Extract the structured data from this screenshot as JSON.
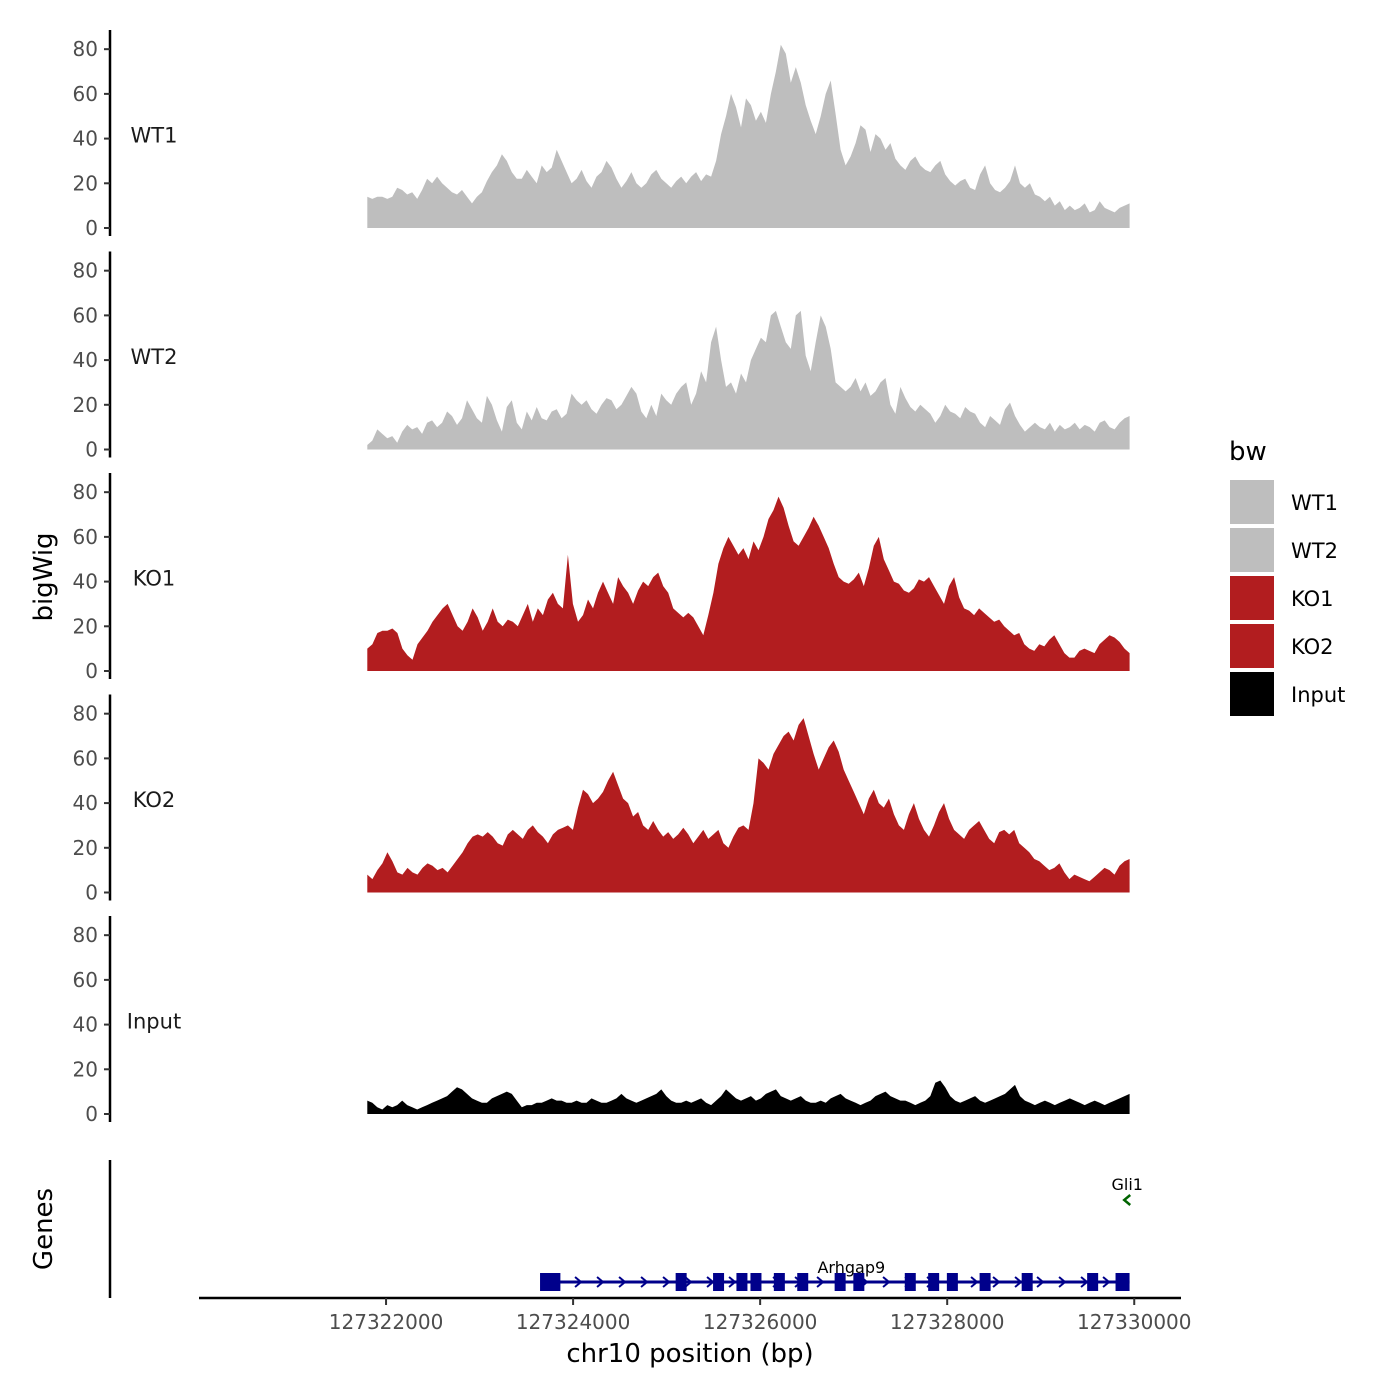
{
  "chart_data": {
    "type": "area",
    "title": "",
    "ylabel": "bigWig",
    "xlabel": "chr10 position (bp)",
    "genes_label": "Genes",
    "chromosome": "chr10",
    "xlim": [
      127320000,
      127330500
    ],
    "data_range": [
      127321800,
      127329950
    ],
    "x_ticks": [
      127322000,
      127324000,
      127326000,
      127328000,
      127330000
    ],
    "x_tick_labels": [
      "127322000",
      "127324000",
      "127326000",
      "127328000",
      "127330000"
    ],
    "ylim": [
      0,
      85
    ],
    "y_ticks": [
      0,
      20,
      40,
      60,
      80
    ],
    "y_tick_labels": [
      "0",
      "20",
      "40",
      "60",
      "80"
    ],
    "legend": {
      "title": "bw",
      "position": "right",
      "items": [
        {
          "label": "WT1",
          "color": "#bebebe"
        },
        {
          "label": "WT2",
          "color": "#bebebe"
        },
        {
          "label": "KO1",
          "color": "#b21d1f"
        },
        {
          "label": "KO2",
          "color": "#b21d1f"
        },
        {
          "label": "Input",
          "color": "#000000"
        }
      ]
    },
    "series": [
      {
        "name": "WT1",
        "color": "#bebebe",
        "values": [
          14,
          13,
          14,
          14,
          13,
          14,
          18,
          17,
          15,
          16,
          13,
          17,
          22,
          20,
          23,
          20,
          18,
          16,
          15,
          17,
          14,
          11,
          14,
          16,
          21,
          25,
          28,
          33,
          30,
          25,
          22,
          22,
          26,
          23,
          20,
          28,
          25,
          27,
          35,
          30,
          25,
          20,
          22,
          26,
          21,
          18,
          23,
          25,
          30,
          27,
          22,
          18,
          21,
          25,
          20,
          18,
          20,
          24,
          26,
          22,
          20,
          18,
          21,
          23,
          20,
          23,
          25,
          21,
          24,
          23,
          30,
          42,
          50,
          60,
          54,
          45,
          58,
          55,
          48,
          52,
          47,
          60,
          70,
          82,
          78,
          65,
          72,
          65,
          55,
          48,
          42,
          50,
          60,
          66,
          51,
          35,
          28,
          32,
          38,
          46,
          44,
          34,
          42,
          40,
          35,
          38,
          31,
          28,
          26,
          30,
          32,
          28,
          26,
          25,
          28,
          30,
          24,
          21,
          19,
          21,
          22,
          18,
          17,
          24,
          28,
          20,
          17,
          16,
          18,
          21,
          28,
          20,
          18,
          20,
          15,
          14,
          12,
          14,
          10,
          12,
          8,
          10,
          8,
          9,
          11,
          7,
          8,
          12,
          9,
          8,
          7,
          9,
          10,
          11
        ]
      },
      {
        "name": "WT2",
        "color": "#bebebe",
        "values": [
          2,
          4,
          9,
          7,
          5,
          6,
          3,
          8,
          11,
          9,
          10,
          7,
          12,
          13,
          10,
          12,
          17,
          15,
          11,
          14,
          22,
          18,
          14,
          12,
          24,
          20,
          13,
          8,
          19,
          22,
          12,
          9,
          17,
          13,
          19,
          14,
          13,
          17,
          18,
          14,
          16,
          25,
          22,
          20,
          22,
          18,
          16,
          20,
          23,
          22,
          18,
          20,
          24,
          28,
          25,
          17,
          14,
          20,
          15,
          25,
          22,
          20,
          25,
          28,
          30,
          20,
          25,
          35,
          30,
          48,
          55,
          40,
          28,
          30,
          25,
          34,
          30,
          40,
          45,
          50,
          48,
          60,
          62,
          55,
          48,
          45,
          60,
          62,
          42,
          35,
          48,
          60,
          55,
          45,
          30,
          28,
          26,
          28,
          32,
          26,
          30,
          24,
          26,
          30,
          32,
          20,
          16,
          28,
          23,
          19,
          17,
          20,
          18,
          16,
          12,
          15,
          20,
          17,
          16,
          14,
          19,
          17,
          16,
          12,
          10,
          15,
          13,
          11,
          18,
          21,
          15,
          11,
          8,
          10,
          12,
          10,
          9,
          12,
          8,
          11,
          9,
          10,
          12,
          9,
          11,
          10,
          8,
          12,
          13,
          10,
          9,
          12,
          14,
          15
        ]
      },
      {
        "name": "KO1",
        "color": "#b21d1f",
        "values": [
          10,
          12,
          17,
          18,
          18,
          19,
          17,
          10,
          7,
          5,
          12,
          15,
          18,
          22,
          25,
          28,
          30,
          25,
          20,
          18,
          22,
          28,
          24,
          18,
          22,
          28,
          22,
          20,
          23,
          22,
          20,
          25,
          30,
          22,
          28,
          25,
          32,
          35,
          30,
          28,
          52,
          30,
          22,
          25,
          32,
          28,
          35,
          40,
          35,
          30,
          42,
          38,
          35,
          30,
          36,
          40,
          38,
          42,
          44,
          38,
          35,
          28,
          26,
          24,
          26,
          24,
          20,
          16,
          25,
          35,
          48,
          55,
          60,
          56,
          52,
          55,
          50,
          58,
          54,
          60,
          68,
          72,
          78,
          73,
          65,
          58,
          56,
          60,
          64,
          69,
          65,
          60,
          55,
          48,
          42,
          40,
          39,
          41,
          44,
          38,
          46,
          56,
          60,
          50,
          45,
          40,
          39,
          36,
          35,
          37,
          41,
          40,
          42,
          38,
          34,
          30,
          38,
          42,
          33,
          28,
          27,
          25,
          28,
          26,
          24,
          22,
          23,
          20,
          18,
          16,
          17,
          12,
          10,
          9,
          12,
          11,
          14,
          16,
          12,
          8,
          6,
          6,
          9,
          10,
          9,
          8,
          12,
          14,
          16,
          15,
          13,
          10,
          8
        ]
      },
      {
        "name": "KO2",
        "color": "#b21d1f",
        "values": [
          8,
          6,
          10,
          13,
          18,
          14,
          9,
          8,
          11,
          9,
          8,
          11,
          13,
          12,
          10,
          11,
          9,
          12,
          15,
          18,
          22,
          25,
          26,
          25,
          27,
          25,
          22,
          21,
          26,
          28,
          26,
          24,
          28,
          30,
          27,
          25,
          22,
          26,
          28,
          29,
          30,
          28,
          38,
          46,
          44,
          40,
          42,
          45,
          50,
          54,
          48,
          42,
          40,
          34,
          36,
          30,
          28,
          32,
          28,
          25,
          27,
          24,
          26,
          29,
          26,
          22,
          25,
          28,
          24,
          26,
          28,
          22,
          20,
          25,
          29,
          30,
          28,
          40,
          60,
          58,
          55,
          62,
          66,
          70,
          72,
          68,
          75,
          78,
          70,
          62,
          55,
          60,
          65,
          68,
          63,
          55,
          50,
          45,
          40,
          35,
          42,
          46,
          40,
          38,
          42,
          35,
          30,
          28,
          35,
          40,
          33,
          28,
          25,
          30,
          36,
          40,
          33,
          28,
          26,
          24,
          28,
          30,
          32,
          28,
          24,
          22,
          27,
          28,
          26,
          28,
          22,
          20,
          18,
          15,
          14,
          12,
          10,
          11,
          13,
          9,
          6,
          8,
          7,
          6,
          5,
          7,
          9,
          11,
          10,
          8,
          12,
          14,
          15
        ]
      },
      {
        "name": "Input",
        "color": "#000000",
        "values": [
          6,
          5,
          3,
          2,
          4,
          3,
          4,
          6,
          4,
          3,
          2,
          3,
          4,
          5,
          6,
          7,
          8,
          10,
          12,
          11,
          9,
          7,
          6,
          5,
          5,
          7,
          8,
          9,
          10,
          9,
          6,
          3,
          4,
          4,
          5,
          5,
          6,
          7,
          6,
          6,
          5,
          5,
          6,
          5,
          5,
          7,
          6,
          5,
          5,
          6,
          7,
          9,
          7,
          6,
          5,
          6,
          7,
          8,
          9,
          11,
          8,
          6,
          5,
          5,
          6,
          5,
          6,
          7,
          5,
          4,
          6,
          8,
          11,
          9,
          7,
          6,
          7,
          8,
          6,
          7,
          9,
          10,
          11,
          8,
          7,
          6,
          7,
          8,
          6,
          5,
          5,
          6,
          5,
          7,
          8,
          9,
          7,
          6,
          5,
          4,
          5,
          6,
          8,
          9,
          10,
          8,
          7,
          6,
          6,
          5,
          4,
          5,
          6,
          8,
          14,
          15,
          12,
          8,
          6,
          5,
          6,
          7,
          8,
          6,
          5,
          6,
          7,
          8,
          9,
          11,
          13,
          8,
          6,
          5,
          4,
          5,
          6,
          5,
          4,
          5,
          6,
          7,
          6,
          5,
          4,
          5,
          6,
          5,
          4,
          5,
          6,
          7,
          8,
          9
        ]
      }
    ],
    "genes": [
      {
        "name": "Arhgap9",
        "strand": "+",
        "color": "#00008b",
        "start": 127323700,
        "end": 127329950,
        "exons": [
          127323700,
          127323800,
          127325150,
          127325550,
          127325800,
          127325950,
          127326200,
          127326450,
          127326850,
          127327050,
          127327600,
          127327850,
          127328050,
          127328400,
          127328850,
          127329550,
          127329800
        ]
      },
      {
        "name": "Gli1",
        "strand": "-",
        "color": "#006400",
        "start": 127329900,
        "end": 127329950,
        "exons": []
      }
    ]
  }
}
